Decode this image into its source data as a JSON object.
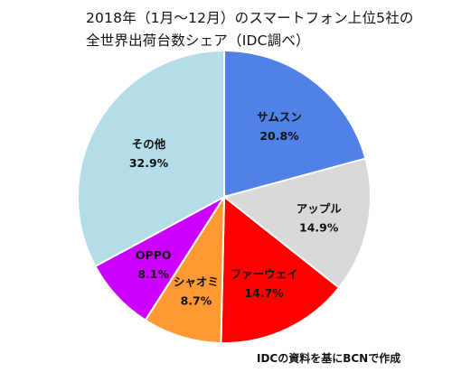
{
  "chart_data": {
    "type": "pie",
    "title_lines": [
      "2018年（1月～12月）のスマートフォン上位5社の",
      "全世界出荷台数シェア（IDC調べ）"
    ],
    "unit": "%",
    "slices": [
      {
        "name": "サムスン",
        "value": 20.8,
        "label": "20.8%",
        "color": "#4f81e6"
      },
      {
        "name": "アップル",
        "value": 14.9,
        "label": "14.9%",
        "color": "#d9d9d9"
      },
      {
        "name": "ファーウェイ",
        "value": 14.7,
        "label": "14.7%",
        "color": "#ff0000"
      },
      {
        "name": "シャオミ",
        "value": 8.7,
        "label": "8.7%",
        "color": "#ff9933"
      },
      {
        "name": "OPPO",
        "value": 8.1,
        "label": "8.1%",
        "color": "#cc00ff"
      },
      {
        "name": "その他",
        "value": 32.9,
        "label": "32.9%",
        "color": "#b4dde9"
      }
    ],
    "source_note": "IDCの資料を基にBCNで作成"
  }
}
